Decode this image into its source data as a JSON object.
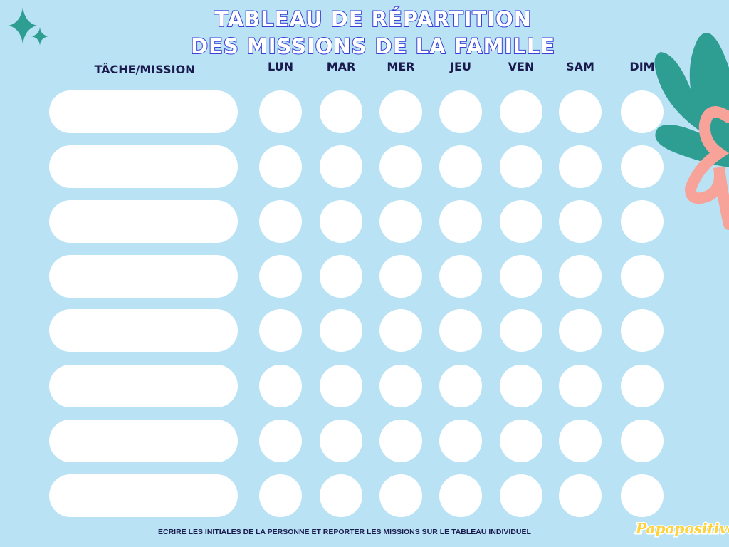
{
  "title": {
    "line1": "TABLEAU DE RÉPARTITION",
    "line2": "DES MISSIONS DE LA FAMILLE"
  },
  "columns": {
    "task": "TÂCHE/MISSION",
    "days": [
      "LUN",
      "MAR",
      "MER",
      "JEU",
      "VEN",
      "SAM",
      "DIM"
    ]
  },
  "footer": "ECRIRE LES INITIALES DE LA PERSONNE ET REPORTER LES MISSIONS SUR LE TABLEAU INDIVIDUEL",
  "logo": "Papapositive",
  "colors": {
    "background": "#b9e3f4",
    "title_outline": "#3a3fd8",
    "text": "#1a1a4e",
    "leaf": "#2f9e92",
    "ribbon": "#f7a39a",
    "logo": "#ffd23a"
  }
}
